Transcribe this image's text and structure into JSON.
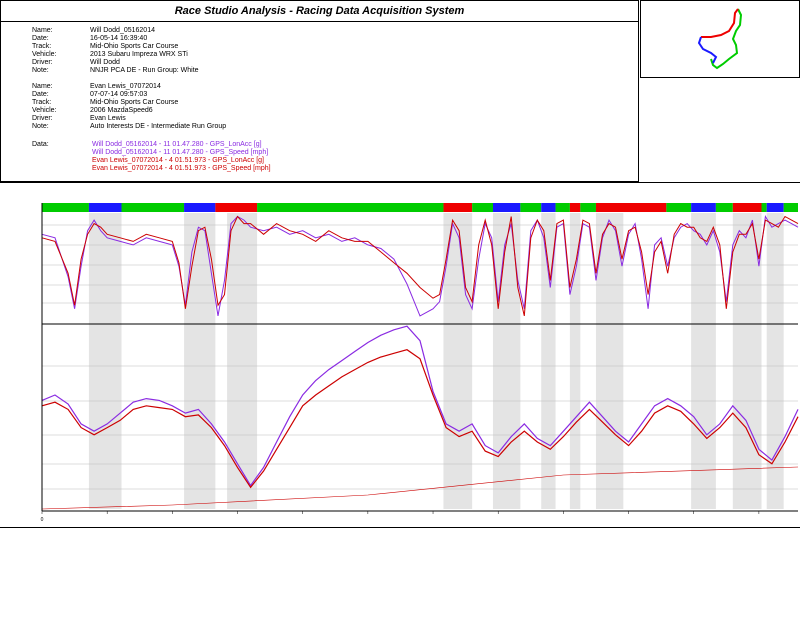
{
  "window": {
    "title": "Race Studio Analysis - Racing Data Acquisition System"
  },
  "sessions": [
    {
      "fields": [
        {
          "key": "Name:",
          "value": "Will Dodd_05162014"
        },
        {
          "key": "Date:",
          "value": "16-05-14 16:39:40"
        },
        {
          "key": "Track:",
          "value": "Mid-Ohio Sports Car Course"
        },
        {
          "key": "Vehicle:",
          "value": "2013 Subaru Impreza WRX STi"
        },
        {
          "key": "Driver:",
          "value": "Will Dodd"
        },
        {
          "key": "Note:",
          "value": "NNJR PCA DE - Run Group: White"
        }
      ]
    },
    {
      "fields": [
        {
          "key": "Name:",
          "value": "Evan Lewis_07072014"
        },
        {
          "key": "Date:",
          "value": "07-07-14 09:57:03"
        },
        {
          "key": "Track:",
          "value": "Mid-Ohio Sports Car Course"
        },
        {
          "key": "Vehicle:",
          "value": "2006 MazdaSpeed6"
        },
        {
          "key": "Driver:",
          "value": "Evan Lewis"
        },
        {
          "key": "Note:",
          "value": "Auto Interests DE - Intermediate Run Group"
        }
      ]
    }
  ],
  "data_legend": {
    "label": "Data:",
    "entries": [
      {
        "text": "Will Dodd_05162014 - 11 01.47.280 - GPS_LonAcc [g]",
        "color": "#8a2be2"
      },
      {
        "text": "Will Dodd_05162014 - 11 01.47.280 - GPS_Speed [mph]",
        "color": "#8a2be2"
      },
      {
        "text": "Evan Lewis_07072014 - 4 01.51.973 - GPS_LonAcc [g]",
        "color": "#cc0000"
      },
      {
        "text": "Evan Lewis_07072014 - 4 01.51.973 - GPS_Speed [mph]",
        "color": "#cc0000"
      }
    ]
  },
  "colors": {
    "will": "#8a2be2",
    "evan": "#cc0000",
    "straight": "#00cc00",
    "turn_left": "#1a1aff",
    "turn_right": "#ee0000",
    "shade": "#d8d8d8"
  },
  "chart_data": {
    "type": "line",
    "x_range": [
      0,
      5800
    ],
    "x_ticks": [
      0,
      500,
      1000,
      1500,
      2000,
      2500,
      3000,
      3500,
      4000,
      4500,
      5000,
      5500
    ],
    "x_tick_labels": [
      "0",
      "",
      "",
      "",
      "",
      "",
      "",
      "",
      "",
      "",
      "",
      ""
    ],
    "segments": [
      {
        "start": 0,
        "end": 360,
        "kind": "straight"
      },
      {
        "start": 360,
        "end": 610,
        "kind": "left"
      },
      {
        "start": 610,
        "end": 1090,
        "kind": "straight"
      },
      {
        "start": 1090,
        "end": 1330,
        "kind": "left"
      },
      {
        "start": 1330,
        "end": 1650,
        "kind": "right"
      },
      {
        "start": 1650,
        "end": 3080,
        "kind": "straight"
      },
      {
        "start": 3080,
        "end": 3300,
        "kind": "right"
      },
      {
        "start": 3300,
        "end": 3460,
        "kind": "straight"
      },
      {
        "start": 3460,
        "end": 3670,
        "kind": "left"
      },
      {
        "start": 3670,
        "end": 3830,
        "kind": "straight"
      },
      {
        "start": 3830,
        "end": 3940,
        "kind": "left"
      },
      {
        "start": 3940,
        "end": 4050,
        "kind": "straight"
      },
      {
        "start": 4050,
        "end": 4130,
        "kind": "right"
      },
      {
        "start": 4130,
        "end": 4250,
        "kind": "straight"
      },
      {
        "start": 4250,
        "end": 4790,
        "kind": "right"
      },
      {
        "start": 4790,
        "end": 4980,
        "kind": "straight"
      },
      {
        "start": 4980,
        "end": 5170,
        "kind": "left"
      },
      {
        "start": 5170,
        "end": 5300,
        "kind": "straight"
      },
      {
        "start": 5300,
        "end": 5520,
        "kind": "right"
      },
      {
        "start": 5520,
        "end": 5560,
        "kind": "straight"
      },
      {
        "start": 5560,
        "end": 5690,
        "kind": "left"
      },
      {
        "start": 5690,
        "end": 5800,
        "kind": "straight"
      }
    ],
    "shaded_ranges": [
      [
        360,
        610
      ],
      [
        1090,
        1330
      ],
      [
        1420,
        1650
      ],
      [
        3080,
        3300
      ],
      [
        3460,
        3670
      ],
      [
        3830,
        3940
      ],
      [
        4050,
        4130
      ],
      [
        4250,
        4460
      ],
      [
        4980,
        5170
      ],
      [
        5300,
        5520
      ],
      [
        5560,
        5690
      ]
    ],
    "lonacc": {
      "ylim": [
        -1.1,
        0.45
      ],
      "x": [
        0,
        100,
        200,
        250,
        300,
        350,
        400,
        450,
        500,
        600,
        700,
        800,
        900,
        1000,
        1050,
        1100,
        1150,
        1200,
        1250,
        1300,
        1350,
        1400,
        1450,
        1500,
        1550,
        1600,
        1700,
        1800,
        1900,
        2000,
        2100,
        2200,
        2300,
        2400,
        2500,
        2600,
        2700,
        2800,
        2900,
        3000,
        3050,
        3100,
        3150,
        3200,
        3250,
        3300,
        3350,
        3400,
        3450,
        3500,
        3550,
        3600,
        3650,
        3700,
        3750,
        3800,
        3850,
        3900,
        3950,
        4000,
        4050,
        4100,
        4150,
        4200,
        4250,
        4300,
        4350,
        4400,
        4450,
        4500,
        4550,
        4600,
        4650,
        4700,
        4750,
        4800,
        4850,
        4900,
        4950,
        5000,
        5050,
        5100,
        5150,
        5200,
        5250,
        5300,
        5350,
        5400,
        5450,
        5500,
        5550,
        5600,
        5650,
        5700,
        5750,
        5800
      ],
      "series": [
        {
          "name": "Will Dodd_05162014 - 11 01.47.280 - GPS_LonAcc [g]",
          "color": "#8a2be2",
          "values": [
            0.15,
            0.1,
            -0.45,
            -0.9,
            -0.3,
            0.2,
            0.35,
            0.2,
            0.1,
            0.05,
            0.0,
            0.1,
            0.05,
            0.0,
            -0.3,
            -0.85,
            -0.1,
            0.25,
            0.2,
            -0.4,
            -1.0,
            -0.5,
            0.3,
            0.4,
            0.35,
            0.25,
            0.2,
            0.25,
            0.15,
            0.2,
            0.1,
            0.15,
            0.05,
            0.1,
            0.0,
            -0.05,
            -0.2,
            -0.55,
            -1.0,
            -0.9,
            -0.8,
            -0.3,
            0.3,
            0.1,
            -0.7,
            -0.9,
            -0.2,
            0.3,
            0.1,
            -0.8,
            0.0,
            0.3,
            -0.5,
            -0.9,
            0.2,
            0.35,
            0.1,
            -0.6,
            0.25,
            0.3,
            -0.7,
            -0.3,
            0.3,
            0.25,
            -0.5,
            0.1,
            0.35,
            0.2,
            -0.3,
            0.15,
            0.3,
            -0.2,
            -0.9,
            0.0,
            0.1,
            -0.3,
            0.1,
            0.25,
            0.3,
            0.2,
            0.15,
            0.0,
            0.2,
            -0.1,
            -0.8,
            0.0,
            0.2,
            0.1,
            0.35,
            -0.3,
            0.4,
            0.25,
            0.3,
            0.35,
            0.3,
            0.25
          ]
        },
        {
          "name": "Evan Lewis_07072014 - 4 01.51.973 - GPS_LonAcc [g]",
          "color": "#cc0000",
          "values": [
            0.1,
            0.05,
            -0.4,
            -0.85,
            -0.2,
            0.15,
            0.3,
            0.25,
            0.15,
            0.1,
            0.05,
            0.15,
            0.1,
            0.05,
            -0.25,
            -0.9,
            -0.3,
            0.2,
            0.25,
            -0.2,
            -0.85,
            -0.7,
            0.2,
            0.4,
            0.3,
            0.3,
            0.15,
            0.3,
            0.2,
            0.15,
            0.05,
            0.2,
            0.1,
            0.05,
            0.05,
            -0.1,
            -0.25,
            -0.4,
            -0.6,
            -0.75,
            -0.7,
            -0.2,
            0.35,
            0.2,
            -0.6,
            -0.8,
            0.0,
            0.35,
            0.0,
            -0.9,
            -0.1,
            0.4,
            -0.6,
            -1.0,
            0.1,
            0.35,
            0.2,
            -0.5,
            0.3,
            0.35,
            -0.6,
            -0.2,
            0.35,
            0.3,
            -0.4,
            0.15,
            0.3,
            0.25,
            -0.2,
            0.2,
            0.25,
            -0.1,
            -0.7,
            -0.1,
            0.05,
            -0.4,
            0.15,
            0.3,
            0.25,
            0.25,
            0.1,
            0.05,
            0.25,
            0.0,
            -0.9,
            -0.1,
            0.15,
            0.15,
            0.3,
            -0.2,
            0.35,
            0.3,
            0.25,
            0.4,
            0.35,
            0.3
          ]
        }
      ]
    },
    "speed": {
      "ylim": [
        15,
        115
      ],
      "x": [
        0,
        100,
        200,
        300,
        400,
        500,
        600,
        700,
        800,
        900,
        1000,
        1100,
        1200,
        1300,
        1400,
        1500,
        1600,
        1700,
        1800,
        1900,
        2000,
        2100,
        2200,
        2300,
        2400,
        2500,
        2600,
        2700,
        2800,
        2900,
        3000,
        3100,
        3200,
        3300,
        3400,
        3500,
        3600,
        3700,
        3800,
        3900,
        4000,
        4100,
        4200,
        4300,
        4400,
        4500,
        4600,
        4700,
        4800,
        4900,
        5000,
        5100,
        5200,
        5300,
        5400,
        5500,
        5600,
        5700,
        5800
      ],
      "series": [
        {
          "name": "Will Dodd_05162014 - 11 01.47.280 - GPS_Speed [mph]",
          "color": "#8a2be2",
          "values": [
            75,
            78,
            73,
            62,
            58,
            62,
            68,
            74,
            76,
            75,
            72,
            68,
            70,
            62,
            52,
            40,
            28,
            38,
            52,
            66,
            78,
            86,
            92,
            97,
            102,
            107,
            111,
            114,
            116,
            108,
            80,
            62,
            58,
            62,
            50,
            46,
            55,
            62,
            54,
            50,
            58,
            66,
            74,
            66,
            58,
            52,
            62,
            72,
            76,
            72,
            66,
            56,
            62,
            72,
            64,
            48,
            42,
            55,
            70
          ]
        },
        {
          "name": "Evan Lewis_07072014 - 4 01.51.973 - GPS_Speed [mph]",
          "color": "#cc0000",
          "values": [
            72,
            74,
            70,
            60,
            56,
            60,
            64,
            70,
            72,
            71,
            70,
            66,
            67,
            60,
            50,
            38,
            27,
            36,
            48,
            60,
            72,
            78,
            83,
            88,
            92,
            96,
            99,
            101,
            103,
            98,
            78,
            60,
            55,
            58,
            47,
            44,
            52,
            58,
            52,
            48,
            55,
            63,
            70,
            63,
            56,
            50,
            58,
            68,
            72,
            69,
            62,
            54,
            60,
            68,
            60,
            45,
            40,
            52,
            66
          ]
        }
      ]
    }
  }
}
